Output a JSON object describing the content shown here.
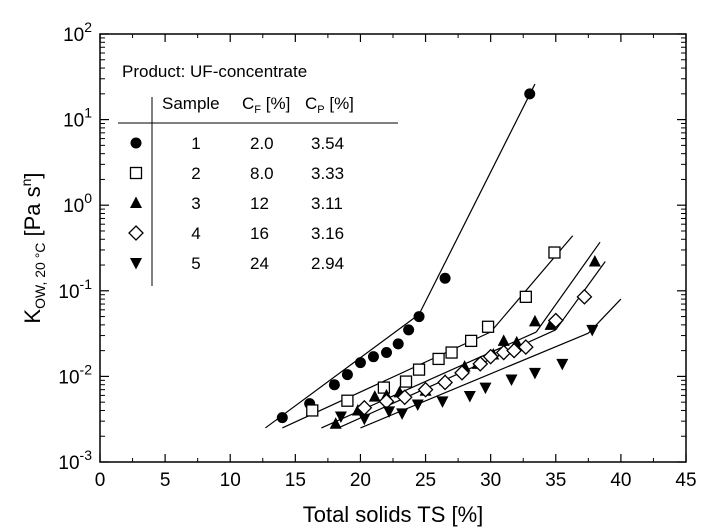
{
  "chart_data": {
    "type": "scatter",
    "title": "",
    "xlabel": "Total solids TS [%]",
    "ylabel": {
      "main": "K",
      "sub": "OW, 20 °C",
      "unit_open": " [Pa s",
      "unit_sup": "n",
      "unit_close": "]"
    },
    "xlim": [
      0,
      45
    ],
    "ylim": [
      0.001,
      100
    ],
    "y_scale": "log",
    "grid": false,
    "xticks": [
      0,
      5,
      10,
      15,
      20,
      25,
      30,
      35,
      40,
      45
    ],
    "yticks": [
      {
        "value": 0.001,
        "base": "10",
        "exp": "-3"
      },
      {
        "value": 0.01,
        "base": "10",
        "exp": "-2"
      },
      {
        "value": 0.1,
        "base": "10",
        "exp": "-1"
      },
      {
        "value": 1,
        "base": "10",
        "exp": "0"
      },
      {
        "value": 10,
        "base": "10",
        "exp": "1"
      },
      {
        "value": 100,
        "base": "10",
        "exp": "2"
      }
    ],
    "legend": {
      "position": "top-left",
      "title": "Product: UF-concentrate",
      "headers": {
        "sample": "Sample",
        "cf_main": "C",
        "cf_sub": "F",
        "cf_unit": " [%]",
        "cp_main": "C",
        "cp_sub": "P",
        "cp_unit": " [%]"
      },
      "rows": [
        {
          "sample": "1",
          "cf": "2.0",
          "cp": "3.54"
        },
        {
          "sample": "2",
          "cf": "8.0",
          "cp": "3.33"
        },
        {
          "sample": "3",
          "cf": "12",
          "cp": "3.11"
        },
        {
          "sample": "4",
          "cf": "16",
          "cp": "3.16"
        },
        {
          "sample": "5",
          "cf": "24",
          "cp": "2.94"
        }
      ]
    },
    "series": [
      {
        "marker": "filled-circle",
        "points": [
          [
            14,
            0.0033
          ],
          [
            16.1,
            0.0048
          ],
          [
            18,
            0.008
          ],
          [
            19,
            0.0105
          ],
          [
            20,
            0.0145
          ],
          [
            21,
            0.017
          ],
          [
            22,
            0.019
          ],
          [
            22.9,
            0.024
          ],
          [
            23.7,
            0.035
          ],
          [
            24.5,
            0.05
          ],
          [
            26.5,
            0.14
          ],
          [
            33,
            20
          ]
        ],
        "fit_lines": [
          [
            [
              12.7,
              0.0025
            ],
            [
              24.5,
              0.053
            ]
          ],
          [
            [
              24.5,
              0.053
            ],
            [
              33.4,
              26
            ]
          ]
        ]
      },
      {
        "marker": "open-square",
        "points": [
          [
            16.3,
            0.004
          ],
          [
            19,
            0.0052
          ],
          [
            21.8,
            0.0074
          ],
          [
            23.5,
            0.0087
          ],
          [
            24.5,
            0.012
          ],
          [
            26,
            0.016
          ],
          [
            27,
            0.019
          ],
          [
            28.5,
            0.026
          ],
          [
            29.8,
            0.038
          ],
          [
            32.7,
            0.085
          ],
          [
            34.9,
            0.28
          ]
        ],
        "fit_lines": [
          [
            [
              14,
              0.0025
            ],
            [
              30,
              0.033
            ]
          ],
          [
            [
              30,
              0.033
            ],
            [
              36.3,
              0.44
            ]
          ]
        ]
      },
      {
        "marker": "filled-triangle-up",
        "points": [
          [
            18.1,
            0.0028
          ],
          [
            19.8,
            0.004
          ],
          [
            21.1,
            0.0058
          ],
          [
            22,
            0.006
          ],
          [
            23,
            0.0065
          ],
          [
            25,
            0.0068
          ],
          [
            26.5,
            0.009
          ],
          [
            28,
            0.013
          ],
          [
            29,
            0.014
          ],
          [
            30.2,
            0.018
          ],
          [
            31,
            0.026
          ],
          [
            32,
            0.025
          ],
          [
            33.4,
            0.044
          ],
          [
            34.6,
            0.04
          ],
          [
            38,
            0.22
          ]
        ],
        "fit_lines": [
          [
            [
              17,
              0.0025
            ],
            [
              33.5,
              0.033
            ]
          ],
          [
            [
              33.5,
              0.033
            ],
            [
              38.4,
              0.37
            ]
          ]
        ]
      },
      {
        "marker": "open-diamond",
        "points": [
          [
            20.3,
            0.0043
          ],
          [
            22,
            0.0051
          ],
          [
            23.4,
            0.0057
          ],
          [
            25,
            0.007
          ],
          [
            26.5,
            0.0085
          ],
          [
            27.8,
            0.011
          ],
          [
            29.2,
            0.014
          ],
          [
            30,
            0.017
          ],
          [
            31,
            0.019
          ],
          [
            31.8,
            0.02
          ],
          [
            32.7,
            0.022
          ],
          [
            35,
            0.045
          ],
          [
            37.2,
            0.085
          ]
        ],
        "fit_lines": [
          [
            [
              18.3,
              0.0025
            ],
            [
              35,
              0.035
            ]
          ],
          [
            [
              35,
              0.035
            ],
            [
              38.8,
              0.22
            ]
          ]
        ]
      },
      {
        "marker": "filled-triangle-down",
        "points": [
          [
            18.5,
            0.0034
          ],
          [
            20.3,
            0.0032
          ],
          [
            22.2,
            0.0039
          ],
          [
            23.2,
            0.0037
          ],
          [
            24.4,
            0.0047
          ],
          [
            26.3,
            0.0051
          ],
          [
            28.4,
            0.0059
          ],
          [
            29.6,
            0.0074
          ],
          [
            31.6,
            0.0092
          ],
          [
            33.4,
            0.011
          ],
          [
            35.5,
            0.014
          ],
          [
            37.8,
            0.035
          ]
        ],
        "fit_lines": [
          [
            [
              20,
              0.0025
            ],
            [
              37.5,
              0.032
            ]
          ],
          [
            [
              37.5,
              0.032
            ],
            [
              40,
              0.08
            ]
          ]
        ]
      }
    ]
  }
}
